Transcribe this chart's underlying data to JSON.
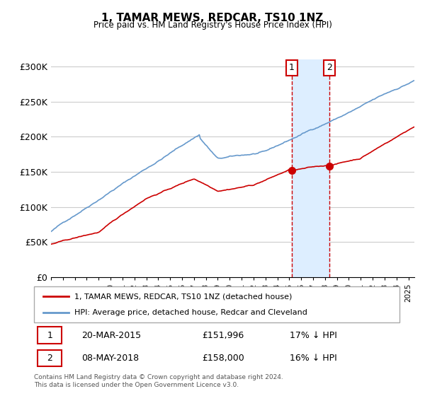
{
  "title": "1, TAMAR MEWS, REDCAR, TS10 1NZ",
  "subtitle": "Price paid vs. HM Land Registry's House Price Index (HPI)",
  "ylabel_ticks": [
    "£0",
    "£50K",
    "£100K",
    "£150K",
    "£200K",
    "£250K",
    "£300K"
  ],
  "ytick_values": [
    0,
    50000,
    100000,
    150000,
    200000,
    250000,
    300000
  ],
  "ylim": [
    0,
    310000
  ],
  "xlim_start": 1995.0,
  "xlim_end": 2025.5,
  "sale1": {
    "date_num": 2015.21,
    "price": 151996,
    "label": "1",
    "text": "20-MAR-2015",
    "price_text": "£151,996",
    "pct_text": "17% ↓ HPI"
  },
  "sale2": {
    "date_num": 2018.36,
    "price": 158000,
    "label": "2",
    "text": "08-MAY-2018",
    "price_text": "£158,000",
    "pct_text": "16% ↓ HPI"
  },
  "line_color_red": "#cc0000",
  "line_color_blue": "#6699cc",
  "shade_color": "#ddeeff",
  "grid_color": "#cccccc",
  "background_color": "#ffffff",
  "legend_label1": "1, TAMAR MEWS, REDCAR, TS10 1NZ (detached house)",
  "legend_label2": "HPI: Average price, detached house, Redcar and Cleveland",
  "footer1": "Contains HM Land Registry data © Crown copyright and database right 2024.",
  "footer2": "This data is licensed under the Open Government Licence v3.0."
}
